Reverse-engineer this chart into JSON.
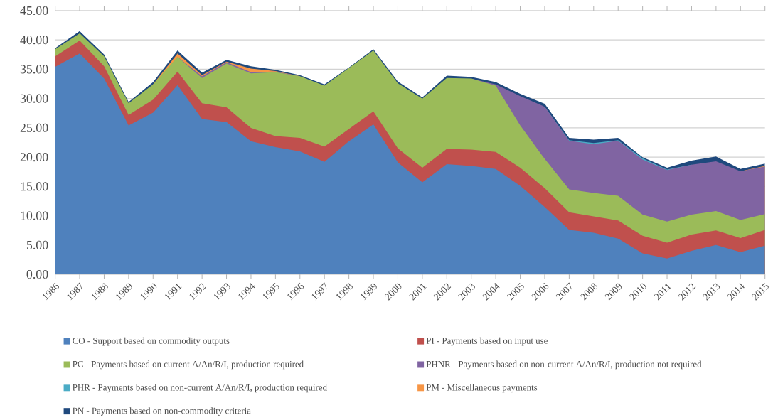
{
  "chart_data": {
    "type": "area",
    "stacked": true,
    "grid": "y",
    "legend": "bottom",
    "categories": [
      "1986",
      "1987",
      "1988",
      "1989",
      "1990",
      "1991",
      "1992",
      "1993",
      "1994",
      "1995",
      "1996",
      "1997",
      "1998",
      "1999",
      "2000",
      "2001",
      "2002",
      "2003",
      "2004",
      "2005",
      "2006",
      "2007",
      "2008",
      "2009",
      "2010",
      "2011",
      "2012",
      "2013",
      "2014",
      "2015"
    ],
    "ylim": [
      0,
      45
    ],
    "yticks": [
      {
        "value": 0,
        "label": "0.00"
      },
      {
        "value": 5,
        "label": "5.00"
      },
      {
        "value": 10,
        "label": "10.00"
      },
      {
        "value": 15,
        "label": "15.00"
      },
      {
        "value": 20,
        "label": "20.00"
      },
      {
        "value": 25,
        "label": "25.00"
      },
      {
        "value": 30,
        "label": "30.00"
      },
      {
        "value": 35,
        "label": "35.00"
      },
      {
        "value": 40,
        "label": "40.00"
      },
      {
        "value": 45,
        "label": "45.00"
      }
    ],
    "series": [
      {
        "name": "CO - Support based on commodity outputs",
        "color": "#4f81bd",
        "values": [
          35.4,
          37.7,
          33.4,
          25.4,
          27.6,
          32.3,
          26.5,
          26.0,
          22.7,
          21.7,
          21.0,
          19.2,
          22.7,
          25.6,
          19.1,
          15.7,
          18.8,
          18.5,
          18.0,
          15.1,
          11.5,
          7.6,
          7.1,
          6.1,
          3.6,
          2.7,
          4.0,
          5.0,
          3.8,
          4.9
        ]
      },
      {
        "name": "PI - Payments based on input use",
        "color": "#c0504d",
        "values": [
          1.8,
          2.2,
          2.1,
          1.8,
          2.2,
          2.3,
          2.7,
          2.5,
          2.3,
          1.9,
          2.3,
          2.6,
          2.1,
          2.2,
          2.4,
          2.5,
          2.6,
          2.8,
          2.9,
          3.1,
          3.2,
          3.0,
          2.8,
          3.1,
          3.0,
          2.7,
          2.8,
          2.5,
          2.4,
          2.7
        ]
      },
      {
        "name": "PC - Payments based on current A/An/R/I, production required",
        "color": "#9bbb59",
        "values": [
          1.2,
          1.2,
          1.7,
          2.0,
          2.6,
          2.5,
          4.3,
          7.5,
          9.3,
          10.9,
          10.5,
          10.4,
          10.4,
          10.4,
          11.1,
          11.8,
          12.1,
          12.1,
          11.3,
          7.2,
          5.0,
          3.9,
          4.0,
          4.2,
          3.6,
          3.6,
          3.4,
          3.3,
          3.1,
          2.7
        ]
      },
      {
        "name": "PHNR - Payments based on non-current A/An/R/I, production not required",
        "color": "#8064a2",
        "values": [
          null,
          null,
          null,
          null,
          null,
          0,
          0.3,
          0.2,
          0.2,
          0.1,
          0,
          null,
          null,
          null,
          null,
          null,
          null,
          0,
          0.2,
          5.0,
          8.9,
          8.3,
          8.3,
          9.4,
          9.4,
          8.8,
          8.5,
          8.5,
          8.3,
          8.1
        ]
      },
      {
        "name": "PHR - Payments based on non-current A/An/R/I, production required",
        "color": "#4bacc6",
        "values": [
          null,
          null,
          null,
          null,
          null,
          null,
          null,
          null,
          null,
          null,
          null,
          null,
          null,
          null,
          null,
          null,
          null,
          null,
          null,
          null,
          0,
          0.1,
          0.2,
          0.1,
          0.2,
          0.1,
          0,
          null,
          null,
          null
        ]
      },
      {
        "name": "PM - Miscellaneous payments",
        "color": "#f79646",
        "values": [
          null,
          null,
          null,
          null,
          0,
          0.6,
          0.2,
          0.1,
          0.6,
          0.1,
          0,
          null,
          null,
          null,
          null,
          null,
          null,
          null,
          null,
          null,
          null,
          null,
          null,
          null,
          null,
          null,
          null,
          null,
          0,
          0.1
        ]
      },
      {
        "name": "PN - Payments based on non-commodity criteria",
        "color": "#1f497d",
        "values": [
          0.2,
          0.4,
          0.3,
          0.2,
          0.4,
          0.5,
          0.4,
          0.3,
          0.4,
          0.2,
          0.2,
          0.2,
          0.1,
          0.2,
          0.3,
          0.2,
          0.4,
          0.3,
          0.4,
          0.4,
          0.5,
          0.4,
          0.6,
          0.4,
          0.2,
          0.3,
          0.7,
          0.8,
          0.4,
          0.4
        ]
      }
    ]
  }
}
